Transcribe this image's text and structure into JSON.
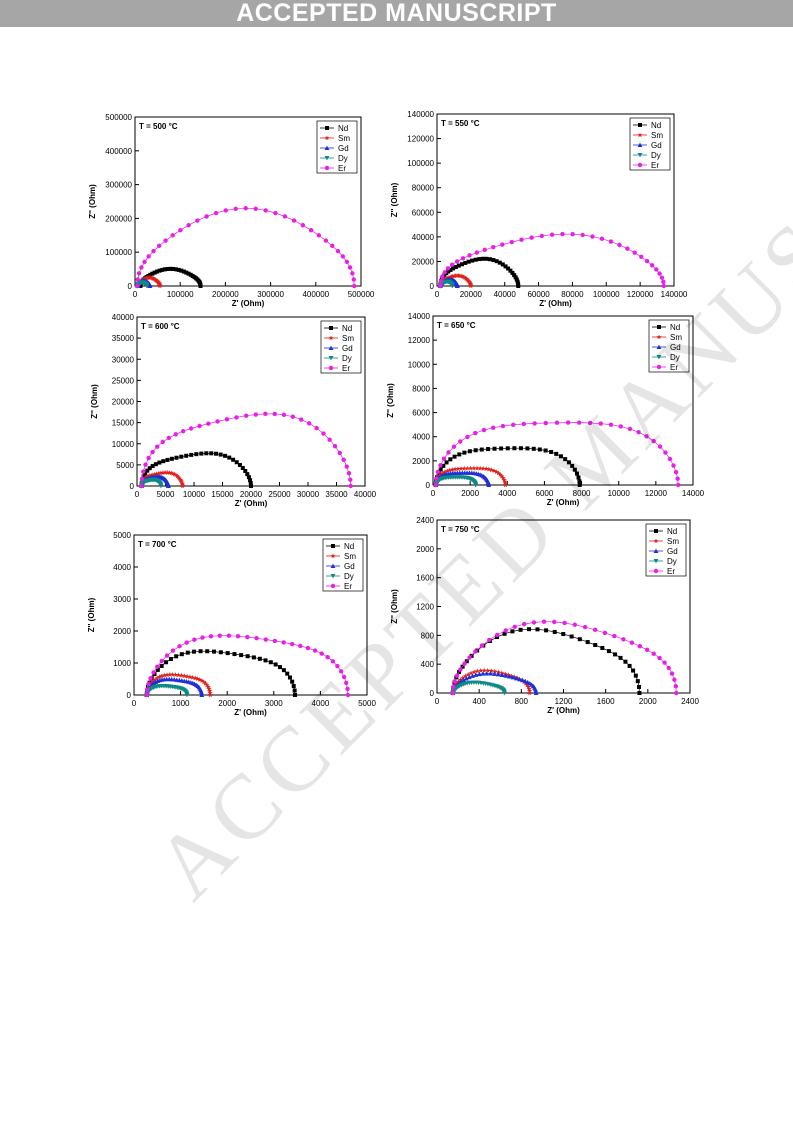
{
  "banner": "ACCEPTED MANUSCRIPT",
  "watermark": "ACCEPTED MANUSCRIPT",
  "legend": [
    "Nd",
    "Sm",
    "Gd",
    "Dy",
    "Er"
  ],
  "colors": {
    "Nd": "#000000",
    "Sm": "#e0201b",
    "Gd": "#1f2fd6",
    "Dy": "#0d8a86",
    "Er": "#e81fe6"
  },
  "chart_data": [
    {
      "type": "scatter",
      "title": "T = 500 °C",
      "xlabel": "Z' (Ohm)",
      "ylabel": "Z'' (Ohm)",
      "xlim": [
        0,
        500000
      ],
      "ylim": [
        0,
        500000
      ],
      "xticks": [
        "0",
        "100000",
        "200000",
        "300000",
        "400000",
        "500000"
      ],
      "yticks": [
        "0",
        "100000",
        "200000",
        "300000",
        "400000",
        "500000"
      ],
      "series": [
        {
          "name": "Nd",
          "arc": {
            "x0": 12000,
            "x1": 145000,
            "h": 47000
          }
        },
        {
          "name": "Sm",
          "arc": {
            "x0": 8000,
            "x1": 55000,
            "h": 23000
          }
        },
        {
          "name": "Gd",
          "arc": {
            "x0": 6000,
            "x1": 33000,
            "h": 14000
          }
        },
        {
          "name": "Dy",
          "arc": {
            "x0": 5000,
            "x1": 26000,
            "h": 10000
          }
        },
        {
          "name": "Er",
          "arc": {
            "x0": 5000,
            "x1": 485000,
            "h": 213000
          }
        }
      ]
    },
    {
      "type": "scatter",
      "title": "T = 550 °C",
      "xlabel": "Z' (Ohm)",
      "ylabel": "Z'' (Ohm)",
      "xlim": [
        0,
        140000
      ],
      "ylim": [
        0,
        140000
      ],
      "xticks": [
        "0",
        "20000",
        "40000",
        "60000",
        "80000",
        "100000",
        "120000",
        "140000"
      ],
      "yticks": [
        "0",
        "20000",
        "40000",
        "60000",
        "80000",
        "100000",
        "120000",
        "140000"
      ],
      "series": [
        {
          "name": "Nd",
          "arc": {
            "x0": 2000,
            "x1": 48000,
            "h": 21000
          }
        },
        {
          "name": "Sm",
          "arc": {
            "x0": 2000,
            "x1": 20000,
            "h": 8000
          }
        },
        {
          "name": "Gd",
          "arc": {
            "x0": 2000,
            "x1": 12000,
            "h": 5000
          }
        },
        {
          "name": "Dy",
          "arc": {
            "x0": 2000,
            "x1": 9000,
            "h": 3500
          }
        },
        {
          "name": "Er",
          "arc": {
            "x0": 2000,
            "x1": 134000,
            "h": 40000
          }
        }
      ]
    },
    {
      "type": "scatter",
      "title": "T = 600 °C",
      "xlabel": "Z' (Ohm)",
      "ylabel": "Z'' (Ohm)",
      "xlim": [
        0,
        40000
      ],
      "ylim": [
        0,
        40000
      ],
      "xticks": [
        "0",
        "5000",
        "10000",
        "15000",
        "20000",
        "25000",
        "30000",
        "35000",
        "40000"
      ],
      "yticks": [
        "0",
        "5000",
        "10000",
        "15000",
        "20000",
        "25000",
        "30000",
        "35000",
        "40000"
      ],
      "series": [
        {
          "name": "Nd",
          "arc": {
            "x0": 800,
            "x1": 20000,
            "h": 7800
          }
        },
        {
          "name": "Sm",
          "arc": {
            "x0": 800,
            "x1": 8000,
            "h": 3200
          }
        },
        {
          "name": "Gd",
          "arc": {
            "x0": 800,
            "x1": 5500,
            "h": 2200
          }
        },
        {
          "name": "Dy",
          "arc": {
            "x0": 800,
            "x1": 4200,
            "h": 1500
          }
        },
        {
          "name": "Er",
          "arc": {
            "x0": 800,
            "x1": 37500,
            "h": 17200
          }
        }
      ]
    },
    {
      "type": "scatter",
      "title": "T = 650 °C",
      "xlabel": "Z' (Ohm)",
      "ylabel": "Z'' (Ohm)",
      "xlim": [
        0,
        14000
      ],
      "ylim": [
        0,
        14000
      ],
      "xticks": [
        "0",
        "2000",
        "4000",
        "6000",
        "8000",
        "10000",
        "12000",
        "14000"
      ],
      "yticks": [
        "0",
        "2000",
        "4000",
        "6000",
        "8000",
        "10000",
        "12000",
        "14000"
      ],
      "series": [
        {
          "name": "Nd",
          "arc": {
            "x0": 150,
            "x1": 7900,
            "h": 3300
          }
        },
        {
          "name": "Sm",
          "arc": {
            "x0": 150,
            "x1": 3900,
            "h": 1500
          }
        },
        {
          "name": "Gd",
          "arc": {
            "x0": 150,
            "x1": 3000,
            "h": 1100
          }
        },
        {
          "name": "Dy",
          "arc": {
            "x0": 150,
            "x1": 2300,
            "h": 700
          }
        },
        {
          "name": "Er",
          "arc": {
            "x0": 150,
            "x1": 13200,
            "h": 5600
          }
        }
      ]
    },
    {
      "type": "scatter",
      "title": "T = 700 °C",
      "xlabel": "Z' (Ohm)",
      "ylabel": "Z'' (Ohm)",
      "xlim": [
        0,
        5500
      ],
      "ylim": [
        0,
        5500
      ],
      "xticks": [
        "0",
        "1000",
        "2000",
        "3000",
        "4000",
        "5000"
      ],
      "yticks": [
        "0",
        "1000",
        "2000",
        "3000",
        "4000",
        "5000"
      ],
      "series": [
        {
          "name": "Nd",
          "arc": {
            "x0": 300,
            "x1": 3800,
            "h": 1550
          }
        },
        {
          "name": "Sm",
          "arc": {
            "x0": 300,
            "x1": 1800,
            "h": 720
          }
        },
        {
          "name": "Gd",
          "arc": {
            "x0": 300,
            "x1": 1600,
            "h": 560
          }
        },
        {
          "name": "Dy",
          "arc": {
            "x0": 300,
            "x1": 1250,
            "h": 320
          }
        },
        {
          "name": "Er",
          "arc": {
            "x0": 300,
            "x1": 5050,
            "h": 2100
          }
        }
      ]
    },
    {
      "type": "scatter",
      "title": "T = 750 °C",
      "xlabel": "Z' (Ohm)",
      "ylabel": "Z'' (Ohm)",
      "xlim": [
        0,
        2400
      ],
      "ylim": [
        0,
        2400
      ],
      "xticks": [
        "0",
        "400",
        "800",
        "1200",
        "1600",
        "2000",
        "2400"
      ],
      "yticks": [
        "0",
        "400",
        "800",
        "1200",
        "1600",
        "2000",
        "2400"
      ],
      "series": [
        {
          "name": "Nd",
          "arc": {
            "x0": 150,
            "x1": 1920,
            "h": 850
          }
        },
        {
          "name": "Sm",
          "arc": {
            "x0": 150,
            "x1": 880,
            "h": 300
          }
        },
        {
          "name": "Gd",
          "arc": {
            "x0": 150,
            "x1": 940,
            "h": 260
          }
        },
        {
          "name": "Dy",
          "arc": {
            "x0": 150,
            "x1": 640,
            "h": 140
          }
        },
        {
          "name": "Er",
          "arc": {
            "x0": 150,
            "x1": 2270,
            "h": 950
          }
        }
      ]
    }
  ]
}
